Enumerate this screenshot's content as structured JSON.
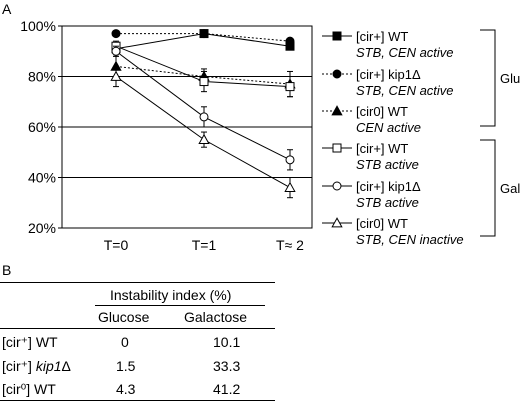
{
  "panel_a_label": "A",
  "panel_b_label": "B",
  "chart_data": {
    "type": "line",
    "x_categories": [
      "T=0",
      "T=1",
      "T≈ 2"
    ],
    "y_ticks": [
      "20%",
      "40%",
      "60%",
      "80%",
      "100%"
    ],
    "ylim": [
      20,
      100
    ],
    "grid": "horizontal",
    "legend_position": "right",
    "series": [
      {
        "id": "cirplus-wt-stb-cen",
        "line1": "[cir+] WT",
        "line2": "STB, CEN active",
        "line_style": "solid",
        "marker": "square-filled",
        "group": "Glu",
        "values": [
          91,
          97,
          92
        ],
        "errors": [
          1.5,
          1,
          1.5
        ]
      },
      {
        "id": "cirplus-kip1-stb-cen",
        "line1": "[cir+] kip1Δ",
        "line2": "STB, CEN active",
        "line_style": "dotted",
        "marker": "circle-filled",
        "group": "Glu",
        "values": [
          97,
          97,
          94
        ],
        "errors": [
          1,
          1,
          1
        ]
      },
      {
        "id": "cir0-wt-cen",
        "line1": "[cir0] WT",
        "line2": "CEN active",
        "line_style": "dotted",
        "marker": "triangle-filled",
        "group": "Glu",
        "values": [
          84,
          80,
          77
        ],
        "errors": [
          4,
          3,
          5
        ]
      },
      {
        "id": "cirplus-wt-stb",
        "line1": "[cir+] WT",
        "line2": "STB active",
        "line_style": "solid",
        "marker": "square-open",
        "group": "Gal",
        "values": [
          92,
          78,
          76
        ],
        "errors": [
          2,
          4,
          4
        ]
      },
      {
        "id": "cirplus-kip1-stb",
        "line1": "[cir+] kip1Δ",
        "line2": "STB active",
        "line_style": "solid",
        "marker": "circle-open",
        "group": "Gal",
        "values": [
          90,
          64,
          47
        ],
        "errors": [
          2,
          4,
          4
        ]
      },
      {
        "id": "cir0-wt-inactive",
        "line1": "[cir0] WT",
        "line2": "STB, CEN inactive",
        "line_style": "solid",
        "marker": "triangle-open",
        "group": "Gal",
        "values": [
          80,
          55,
          36
        ],
        "errors": [
          4,
          3,
          4
        ]
      }
    ],
    "groups": [
      {
        "name": "Glu",
        "label": "Glu"
      },
      {
        "name": "Gal",
        "label": "Gal"
      }
    ]
  },
  "table": {
    "title": "Instability index (%)",
    "columns": [
      "Glucose",
      "Galactose"
    ],
    "rows": [
      {
        "label": "[cir⁺] WT",
        "glucose": "0",
        "galactose": "10.1"
      },
      {
        "label": "[cir⁺] kip1Δ",
        "glucose": "1.5",
        "galactose": "33.3"
      },
      {
        "label": "[cir⁰] WT",
        "glucose": "4.3",
        "galactose": "41.2"
      }
    ]
  }
}
